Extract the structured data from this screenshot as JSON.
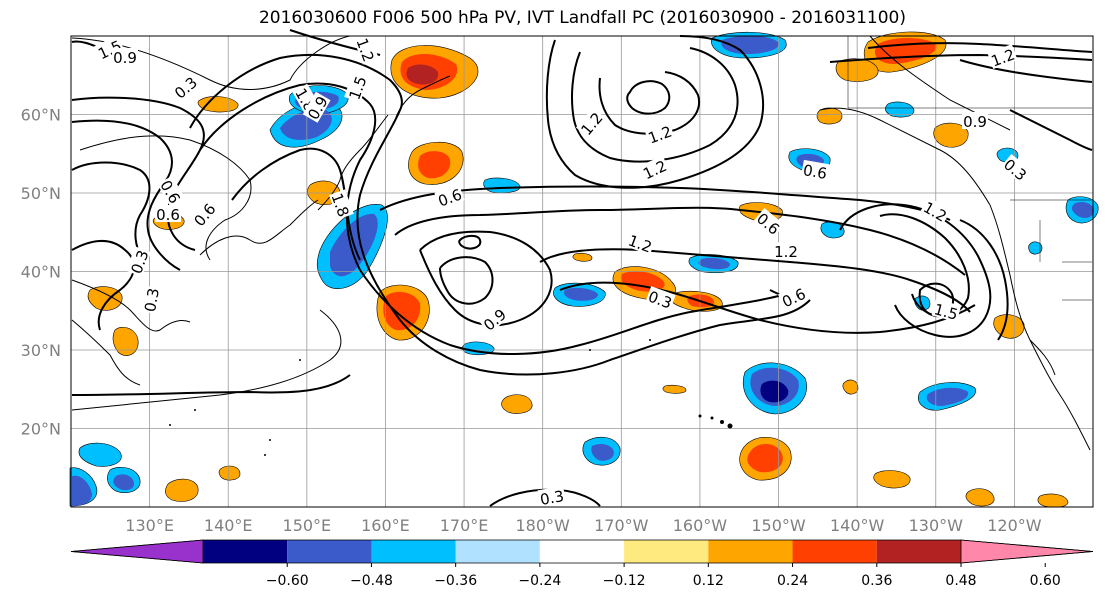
{
  "title": "2016030600 F006 500 hPa PV, IVT Landfall PC (2016030900 - 2016031100)",
  "map": {
    "lat_labels": [
      "60°N",
      "50°N",
      "40°N",
      "30°N",
      "20°N"
    ],
    "lat_values": [
      60,
      50,
      40,
      30,
      20
    ],
    "lon_labels": [
      "130°E",
      "140°E",
      "150°E",
      "160°E",
      "170°E",
      "180°W",
      "170°W",
      "160°W",
      "150°W",
      "140°W",
      "130°W",
      "120°W"
    ],
    "lon_values": [
      130,
      140,
      150,
      160,
      170,
      180,
      190,
      200,
      210,
      220,
      230,
      240
    ],
    "lat_range": [
      10,
      70
    ],
    "lon_range": [
      120,
      250
    ],
    "grid": true,
    "contour_labels": [
      "1.5",
      "0.9",
      "0.3",
      "1.8",
      "1.5",
      "0.9",
      "1.2",
      "0.6",
      "0.6",
      "0.6",
      "0.3",
      "0.3",
      "0.6",
      "1.8",
      "1.2",
      "1.2",
      "0.9",
      "0.6",
      "1.2",
      "1.2",
      "1.2",
      "0.3",
      "0.6",
      "1.5",
      "1.2",
      "0.6",
      "0.3",
      "0.9",
      "1.2",
      "0.3"
    ]
  },
  "colorbar": {
    "tick_labels": [
      "−0.60",
      "−0.48",
      "−0.36",
      "−0.24",
      "−0.12",
      "0.12",
      "0.24",
      "0.36",
      "0.48",
      "0.60"
    ],
    "colors": [
      "#9932cc",
      "#000080",
      "#3a5bc9",
      "#00bfff",
      "#b0e2ff",
      "#ffffff",
      "#ffea80",
      "#ffa500",
      "#ff4000",
      "#b22222",
      "#ff88aa"
    ]
  }
}
